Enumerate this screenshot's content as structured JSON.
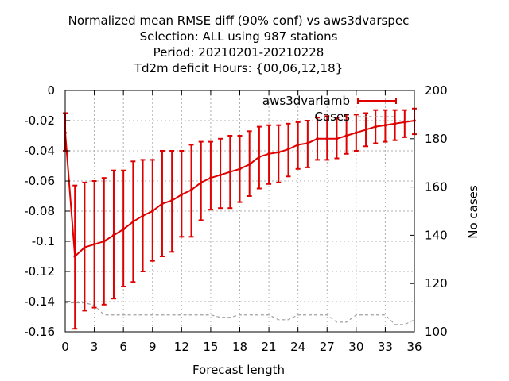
{
  "chart_data": {
    "type": "line",
    "title_lines": [
      "Normalized mean RMSE diff (90% conf) vs aws3dvarspec",
      "Selection: ALL using   987 stations",
      "Period: 20210201-20210228",
      "Td2m deficit   Hours: {00,06,12,18}"
    ],
    "xlabel": "Forecast length",
    "ylabel": "",
    "y2label": "No cases",
    "xlim": [
      0,
      36
    ],
    "ylim": [
      -0.16,
      0
    ],
    "y2lim": [
      100,
      200
    ],
    "xticks": [
      "0",
      "3",
      "6",
      "9",
      "12",
      "15",
      "18",
      "21",
      "24",
      "27",
      "30",
      "33",
      "36"
    ],
    "yticks": [
      "0",
      "-0.02",
      "-0.04",
      "-0.06",
      "-0.08",
      "-0.1",
      "-0.12",
      "-0.14",
      "-0.16"
    ],
    "y2ticks": [
      "200",
      "180",
      "160",
      "140",
      "120",
      "100"
    ],
    "grid": true,
    "legend_position": "top-right",
    "colors": {
      "series": "#e00000",
      "cases": "#a0a0a0",
      "grid": "#b0b0b0"
    },
    "series": [
      {
        "name": "aws3dvarlamb",
        "axis": "left",
        "x": [
          0,
          1,
          2,
          3,
          4,
          5,
          6,
          7,
          8,
          9,
          10,
          11,
          12,
          13,
          14,
          15,
          16,
          17,
          18,
          19,
          20,
          21,
          22,
          23,
          24,
          25,
          26,
          27,
          28,
          29,
          30,
          31,
          32,
          33,
          34,
          35,
          36
        ],
        "y": [
          -0.028,
          -0.11,
          -0.104,
          -0.102,
          -0.1,
          -0.096,
          -0.092,
          -0.087,
          -0.083,
          -0.08,
          -0.075,
          -0.073,
          -0.069,
          -0.066,
          -0.061,
          -0.058,
          -0.056,
          -0.054,
          -0.052,
          -0.049,
          -0.044,
          -0.042,
          -0.041,
          -0.039,
          -0.036,
          -0.035,
          -0.032,
          -0.032,
          -0.032,
          -0.03,
          -0.028,
          -0.026,
          -0.024,
          -0.023,
          -0.022,
          -0.021,
          -0.02
        ],
        "err_low": [
          -0.04,
          -0.158,
          -0.146,
          -0.144,
          -0.142,
          -0.138,
          -0.13,
          -0.127,
          -0.12,
          -0.113,
          -0.11,
          -0.107,
          -0.097,
          -0.097,
          -0.086,
          -0.079,
          -0.078,
          -0.078,
          -0.074,
          -0.07,
          -0.065,
          -0.062,
          -0.061,
          -0.057,
          -0.052,
          -0.051,
          -0.046,
          -0.046,
          -0.045,
          -0.042,
          -0.04,
          -0.037,
          -0.035,
          -0.034,
          -0.033,
          -0.031,
          -0.029
        ],
        "err_high": [
          -0.015,
          -0.063,
          -0.061,
          -0.06,
          -0.058,
          -0.053,
          -0.053,
          -0.047,
          -0.046,
          -0.046,
          -0.04,
          -0.04,
          -0.04,
          -0.036,
          -0.034,
          -0.034,
          -0.032,
          -0.03,
          -0.03,
          -0.027,
          -0.024,
          -0.023,
          -0.023,
          -0.022,
          -0.021,
          -0.02,
          -0.018,
          -0.017,
          -0.018,
          -0.016,
          -0.016,
          -0.015,
          -0.013,
          -0.013,
          -0.013,
          -0.013,
          -0.012
        ]
      },
      {
        "name": "Cases",
        "axis": "right",
        "style": "dashed",
        "x": [
          0,
          1,
          2,
          3,
          4,
          5,
          6,
          7,
          8,
          9,
          10,
          11,
          12,
          13,
          14,
          15,
          16,
          17,
          18,
          19,
          20,
          21,
          22,
          23,
          24,
          25,
          26,
          27,
          28,
          29,
          30,
          31,
          32,
          33,
          34,
          35,
          36
        ],
        "y": [
          112,
          112,
          112,
          111,
          107,
          107,
          107,
          107,
          107,
          107,
          107,
          107,
          107,
          107,
          107,
          107,
          106,
          106,
          107,
          107,
          107,
          107,
          105,
          105,
          107,
          107,
          107,
          107,
          104,
          104,
          107,
          107,
          107,
          107,
          103,
          103,
          105
        ]
      }
    ]
  }
}
